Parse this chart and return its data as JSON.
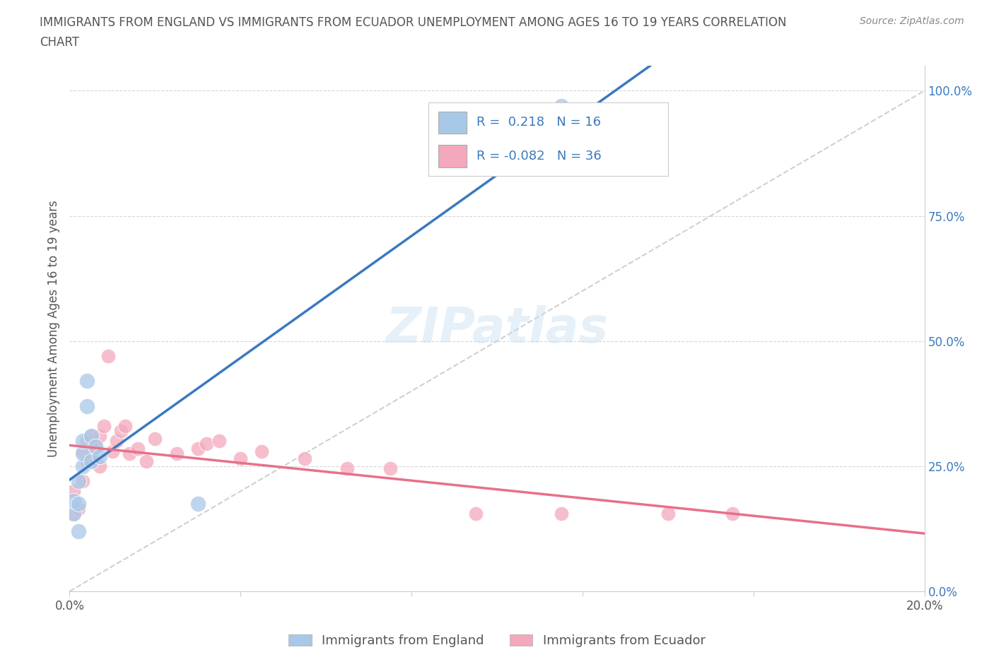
{
  "title_line1": "IMMIGRANTS FROM ENGLAND VS IMMIGRANTS FROM ECUADOR UNEMPLOYMENT AMONG AGES 16 TO 19 YEARS CORRELATION",
  "title_line2": "CHART",
  "source": "Source: ZipAtlas.com",
  "ylabel": "Unemployment Among Ages 16 to 19 years",
  "xlim": [
    0.0,
    0.2
  ],
  "ylim": [
    0.0,
    1.05
  ],
  "xticks": [
    0.0,
    0.04,
    0.08,
    0.12,
    0.16,
    0.2
  ],
  "xticklabels": [
    "0.0%",
    "",
    "",
    "",
    "",
    "20.0%"
  ],
  "yticks_right": [
    0.0,
    0.25,
    0.5,
    0.75,
    1.0
  ],
  "yticklabels_right": [
    "0.0%",
    "25.0%",
    "50.0%",
    "75.0%",
    "100.0%"
  ],
  "england_color": "#a8c8e8",
  "ecuador_color": "#f4a8bc",
  "england_line_color": "#3a7abf",
  "ecuador_line_color": "#e8708a",
  "diagonal_color": "#c8c8c8",
  "R_england": 0.218,
  "N_england": 16,
  "R_ecuador": -0.082,
  "N_ecuador": 36,
  "england_points_x": [
    0.001,
    0.001,
    0.002,
    0.002,
    0.002,
    0.003,
    0.003,
    0.003,
    0.004,
    0.004,
    0.005,
    0.005,
    0.006,
    0.007,
    0.03,
    0.115
  ],
  "england_points_y": [
    0.155,
    0.18,
    0.12,
    0.175,
    0.22,
    0.25,
    0.275,
    0.3,
    0.37,
    0.42,
    0.26,
    0.31,
    0.29,
    0.27,
    0.175,
    0.97
  ],
  "ecuador_points_x": [
    0.001,
    0.001,
    0.002,
    0.003,
    0.003,
    0.004,
    0.004,
    0.005,
    0.005,
    0.005,
    0.006,
    0.007,
    0.007,
    0.008,
    0.009,
    0.01,
    0.011,
    0.012,
    0.013,
    0.014,
    0.016,
    0.018,
    0.02,
    0.025,
    0.03,
    0.032,
    0.035,
    0.04,
    0.045,
    0.055,
    0.065,
    0.075,
    0.095,
    0.115,
    0.14,
    0.155
  ],
  "ecuador_points_y": [
    0.155,
    0.2,
    0.165,
    0.22,
    0.28,
    0.26,
    0.3,
    0.27,
    0.3,
    0.31,
    0.29,
    0.25,
    0.31,
    0.33,
    0.47,
    0.28,
    0.3,
    0.32,
    0.33,
    0.275,
    0.285,
    0.26,
    0.305,
    0.275,
    0.285,
    0.295,
    0.3,
    0.265,
    0.28,
    0.265,
    0.245,
    0.245,
    0.155,
    0.155,
    0.155,
    0.155
  ],
  "watermark": "ZIPatlas",
  "background_color": "#ffffff",
  "grid_color": "#d8d8d8",
  "legend_text_color": "#3a7abf",
  "axis_label_color": "#555555",
  "tick_color": "#555555"
}
